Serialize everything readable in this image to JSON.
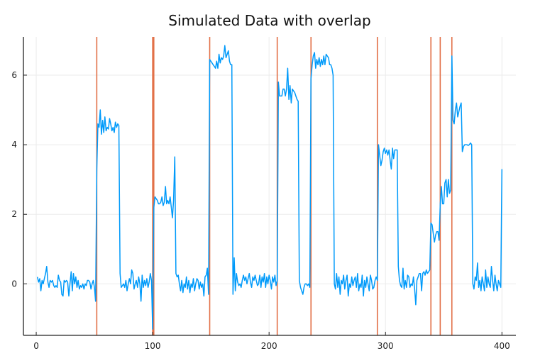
{
  "chart_data": {
    "type": "line",
    "title": "Simulated Data with overlap",
    "xlabel": "",
    "ylabel": "",
    "xlim": [
      -11,
      412
    ],
    "ylim": [
      -1.48,
      7.1
    ],
    "xticks": [
      0,
      100,
      200,
      300,
      400
    ],
    "yticks": [
      0,
      2,
      4,
      6
    ],
    "xtick_labels": [
      "0",
      "100",
      "200",
      "300",
      "400"
    ],
    "ytick_labels": [
      "0",
      "2",
      "4",
      "6"
    ],
    "grid": true,
    "legend": "none",
    "colors": {
      "series": "#009AFA",
      "vlines": "#E26F46",
      "grid": "#EBEBEB",
      "axis": "#222222"
    },
    "series": [
      {
        "x_start": 1,
        "y": [
          0.2,
          0.05,
          0.15,
          -0.2,
          0.1,
          0.0,
          0.15,
          0.3,
          0.5,
          0.05,
          -0.1,
          0.1,
          0.05,
          0.1,
          -0.05,
          -0.1,
          -0.05,
          -0.1,
          0.25,
          0.1,
          0.05,
          -0.3,
          -0.35,
          0.1,
          0.05,
          0.1,
          0.05,
          -0.35,
          0.0,
          0.35,
          -0.2,
          0.3,
          0.0,
          0.2,
          -0.1,
          0.1,
          -0.15,
          -0.05,
          -0.1,
          0.0,
          -0.15,
          0.0,
          -0.05,
          0.1,
          0.1,
          0.05,
          -0.15,
          0.0,
          0.1,
          -0.1,
          -0.5,
          3.3,
          4.6,
          4.5,
          5.0,
          4.3,
          4.7,
          4.35,
          4.8,
          4.4,
          4.5,
          4.45,
          4.75,
          4.6,
          4.4,
          4.5,
          4.35,
          4.65,
          4.5,
          4.6,
          4.55,
          0.3,
          -0.1,
          -0.05,
          0.0,
          -0.1,
          0.1,
          -0.2,
          0.0,
          0.15,
          0.0,
          0.4,
          0.3,
          -0.15,
          0.0,
          0.1,
          -0.1,
          0.2,
          0.0,
          -0.5,
          0.25,
          -0.1,
          0.1,
          -0.05,
          0.15,
          -0.1,
          0.05,
          0.3,
          0.1,
          -1.3,
          2.2,
          2.5,
          2.45,
          2.4,
          2.3,
          2.3,
          2.35,
          2.5,
          2.25,
          2.35,
          2.8,
          2.3,
          2.4,
          2.3,
          2.5,
          2.2,
          1.9,
          2.4,
          3.65,
          0.3,
          0.2,
          0.25,
          0.0,
          -0.2,
          0.1,
          -0.25,
          0.0,
          -0.1,
          0.2,
          -0.15,
          0.1,
          -0.25,
          0.0,
          -0.1,
          0.15,
          -0.2,
          0.0,
          0.15,
          0.1,
          -0.15,
          0.05,
          -0.1,
          0.0,
          -0.35,
          0.2,
          0.25,
          0.45,
          -0.3,
          6.45,
          6.4,
          6.35,
          6.3,
          6.25,
          6.2,
          6.4,
          6.2,
          6.6,
          6.35,
          6.5,
          6.45,
          6.55,
          6.85,
          6.5,
          6.6,
          6.7,
          6.4,
          6.3,
          6.3,
          -0.3,
          0.75,
          -0.2,
          0.3,
          0.05,
          -0.05,
          0.0,
          -0.1,
          0.1,
          0.25,
          0.1,
          0.2,
          0.0,
          0.15,
          0.3,
          0.05,
          -0.1,
          0.2,
          0.1,
          0.25,
          0.1,
          -0.05,
          0.0,
          0.25,
          -0.1,
          0.2,
          0.05,
          0.3,
          -0.1,
          0.2,
          0.0,
          0.25,
          0.1,
          -0.15,
          0.2,
          0.05,
          0.25,
          -0.05,
          0.1,
          5.8,
          5.4,
          5.4,
          5.4,
          5.6,
          5.6,
          5.4,
          5.6,
          6.2,
          5.3,
          5.7,
          5.2,
          5.6,
          5.55,
          5.5,
          5.4,
          5.3,
          5.25,
          0.1,
          -0.1,
          -0.2,
          -0.3,
          -0.1,
          0.0,
          0.0,
          -0.05,
          0.0,
          -0.1,
          5.9,
          6.3,
          6.55,
          6.65,
          6.2,
          6.45,
          6.3,
          6.5,
          6.25,
          6.45,
          6.3,
          6.55,
          6.3,
          6.6,
          6.55,
          6.5,
          6.3,
          6.3,
          6.2,
          6.0,
          0.0,
          -0.15,
          0.3,
          -0.1,
          0.2,
          -0.3,
          0.1,
          0.0,
          0.25,
          -0.15,
          0.1,
          0.25,
          -0.35,
          0.0,
          -0.1,
          0.2,
          -0.05,
          0.1,
          0.2,
          -0.1,
          0.3,
          -0.2,
          0.0,
          -0.1,
          0.25,
          -0.35,
          0.1,
          -0.1,
          0.2,
          0.0,
          -0.2,
          0.25,
          0.1,
          -0.15,
          -0.1,
          0.1,
          0.2,
          0.1,
          4.0,
          3.7,
          3.4,
          3.55,
          3.8,
          3.9,
          3.75,
          3.85,
          3.7,
          3.85,
          3.55,
          3.3,
          3.9,
          3.6,
          3.85,
          3.85,
          3.85,
          0.5,
          0.1,
          -0.05,
          -0.1,
          0.45,
          -0.15,
          0.1,
          -0.1,
          0.25,
          0.2,
          -0.1,
          0.0,
          -0.05,
          0.2,
          -0.15,
          -0.6,
          0.1,
          0.2,
          0.3,
          0.3,
          -0.2,
          0.3,
          0.35,
          0.25,
          0.4,
          0.3,
          0.35,
          0.4,
          1.75,
          1.7,
          1.45,
          1.2,
          1.4,
          1.5,
          1.5,
          1.25,
          2.3,
          2.8,
          2.3,
          2.3,
          2.9,
          3.0,
          2.5,
          3.0,
          2.6,
          2.7,
          6.55,
          4.7,
          4.6,
          5.0,
          5.2,
          4.8,
          4.95,
          5.1,
          5.2,
          3.8,
          3.95,
          4.0,
          4.0,
          4.0,
          3.98,
          4.0,
          4.05,
          4.0,
          0.0,
          -0.15,
          0.2,
          0.1,
          0.6,
          -0.1,
          0.1,
          -0.2,
          0.2,
          0.0,
          -0.2,
          0.4,
          -0.1,
          0.2,
          0.0,
          -0.1,
          0.5,
          0.1,
          -0.2,
          0.25,
          0.0,
          -0.2,
          0.1,
          0.0,
          -0.1,
          3.3
        ]
      }
    ],
    "vlines": [
      52,
      100,
      101,
      149,
      207,
      236,
      293,
      339,
      347,
      357
    ]
  }
}
